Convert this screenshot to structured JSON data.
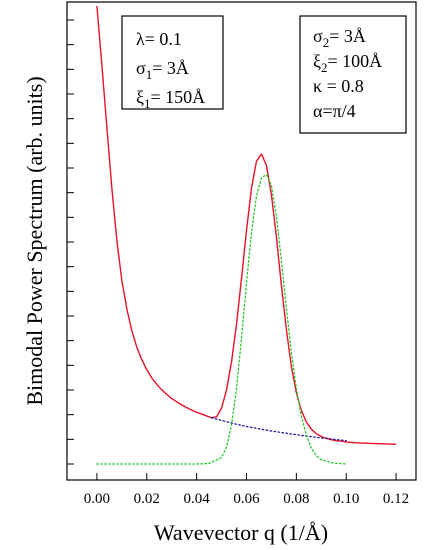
{
  "chart_data": {
    "type": "line",
    "title": "",
    "xlabel": "Wavevector q (1/Å)",
    "ylabel": "Bimodal Power Spectrum (arb. units)",
    "xlim": [
      -0.012,
      0.128
    ],
    "ylim": [
      0,
      1.02
    ],
    "xticks": [
      "0.00",
      "0.02",
      "0.04",
      "0.06",
      "0.08",
      "0.10",
      "0.12"
    ],
    "xtick_values": [
      0.0,
      0.02,
      0.04,
      0.06,
      0.08,
      0.1,
      0.12
    ],
    "y_tick_count": 19,
    "y_tick_labels_shown": false,
    "grid": false,
    "legend": "none",
    "series": [
      {
        "color": "#e8102a",
        "style": "solid",
        "x": [
          0.0,
          0.002,
          0.004,
          0.006,
          0.008,
          0.01,
          0.012,
          0.014,
          0.016,
          0.018,
          0.02,
          0.022,
          0.024,
          0.026,
          0.028,
          0.03,
          0.032,
          0.034,
          0.036,
          0.038,
          0.04,
          0.042,
          0.044,
          0.046,
          0.048,
          0.05,
          0.052,
          0.054,
          0.056,
          0.058,
          0.06,
          0.062,
          0.064,
          0.066,
          0.068,
          0.07,
          0.072,
          0.074,
          0.076,
          0.078,
          0.08,
          0.082,
          0.084,
          0.086,
          0.088,
          0.09,
          0.092,
          0.094,
          0.096,
          0.098,
          0.1,
          0.105,
          0.11,
          0.115,
          0.12
        ],
        "y": [
          1.0,
          0.87,
          0.735,
          0.602,
          0.488,
          0.401,
          0.339,
          0.291,
          0.255,
          0.228,
          0.206,
          0.188,
          0.174,
          0.162,
          0.152,
          0.143,
          0.136,
          0.129,
          0.123,
          0.118,
          0.113,
          0.109,
          0.105,
          0.101,
          0.103,
          0.122,
          0.162,
          0.223,
          0.305,
          0.405,
          0.51,
          0.602,
          0.661,
          0.677,
          0.652,
          0.588,
          0.496,
          0.39,
          0.294,
          0.213,
          0.156,
          0.117,
          0.092,
          0.076,
          0.066,
          0.06,
          0.056,
          0.053,
          0.051,
          0.05,
          0.048,
          0.046,
          0.045,
          0.044,
          0.043
        ]
      },
      {
        "color": "#1a1aa0",
        "style": "dotted",
        "x": [
          0.046,
          0.05,
          0.055,
          0.06,
          0.065,
          0.07,
          0.075,
          0.08,
          0.085,
          0.09,
          0.095,
          0.1
        ],
        "y": [
          0.101,
          0.095,
          0.088,
          0.082,
          0.077,
          0.072,
          0.068,
          0.064,
          0.06,
          0.057,
          0.054,
          0.051
        ]
      },
      {
        "color": "#22c822",
        "style": "dotted",
        "x": [
          0.0,
          0.01,
          0.02,
          0.03,
          0.04,
          0.045,
          0.05,
          0.052,
          0.054,
          0.056,
          0.058,
          0.06,
          0.062,
          0.064,
          0.066,
          0.068,
          0.07,
          0.072,
          0.074,
          0.076,
          0.078,
          0.08,
          0.082,
          0.084,
          0.086,
          0.088,
          0.09,
          0.095,
          0.1
        ],
        "y": [
          0.0,
          0.0,
          0.0,
          0.0,
          0.0,
          0.001,
          0.014,
          0.037,
          0.085,
          0.165,
          0.275,
          0.395,
          0.505,
          0.585,
          0.625,
          0.632,
          0.608,
          0.54,
          0.445,
          0.34,
          0.245,
          0.165,
          0.105,
          0.063,
          0.035,
          0.018,
          0.009,
          0.002,
          0.0
        ]
      }
    ],
    "annotations": [
      {
        "location": "top-left",
        "lines": [
          {
            "base": "λ",
            "sub": "",
            "rest": "= 0.1"
          },
          {
            "base": "σ",
            "sub": "1",
            "rest": "= 3Å"
          },
          {
            "base": "ξ",
            "sub": "1",
            "rest": "= 150Å"
          }
        ]
      },
      {
        "location": "top-right",
        "lines": [
          {
            "base": "σ",
            "sub": "2",
            "rest": "= 3Å"
          },
          {
            "base": "ξ",
            "sub": "2",
            "rest": "= 100Å"
          },
          {
            "base": "κ",
            "sub": "",
            "rest": " = 0.8"
          },
          {
            "base": "α",
            "sub": "",
            "rest": "=π/4"
          }
        ]
      }
    ]
  }
}
